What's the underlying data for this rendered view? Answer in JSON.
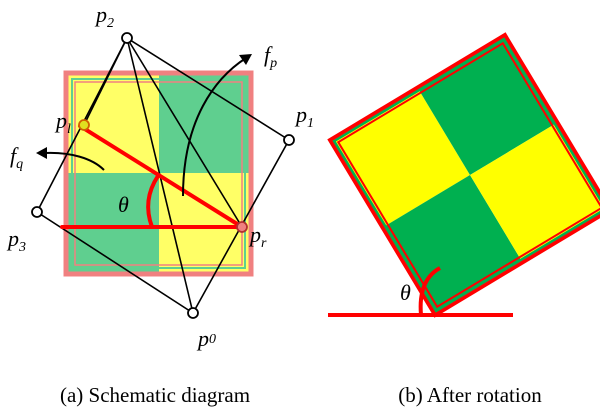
{
  "panel_a": {
    "caption": "(a) Schematic diagram",
    "labels": {
      "p0": {
        "base": "p",
        "sub": "0"
      },
      "p1": {
        "base": "p",
        "sub": "1"
      },
      "p2": {
        "base": "p",
        "sub": "2"
      },
      "p3": {
        "base": "p",
        "sub": "3"
      },
      "pl": {
        "base": "p",
        "sub": "l"
      },
      "pr": {
        "base": "p",
        "sub": "r"
      },
      "fp": {
        "base": "f",
        "sub": "p"
      },
      "fq": {
        "base": "f",
        "sub": "q"
      },
      "theta": "θ"
    }
  },
  "panel_b": {
    "caption": "(b) After rotation",
    "theta": "θ"
  },
  "colors": {
    "yellow": "#ffff00",
    "green": "#00b050",
    "light_yellow": "#ffff66",
    "light_green": "#5fcf8f",
    "red": "#ff0000",
    "pink_border": "#f08080",
    "black": "#000000"
  }
}
